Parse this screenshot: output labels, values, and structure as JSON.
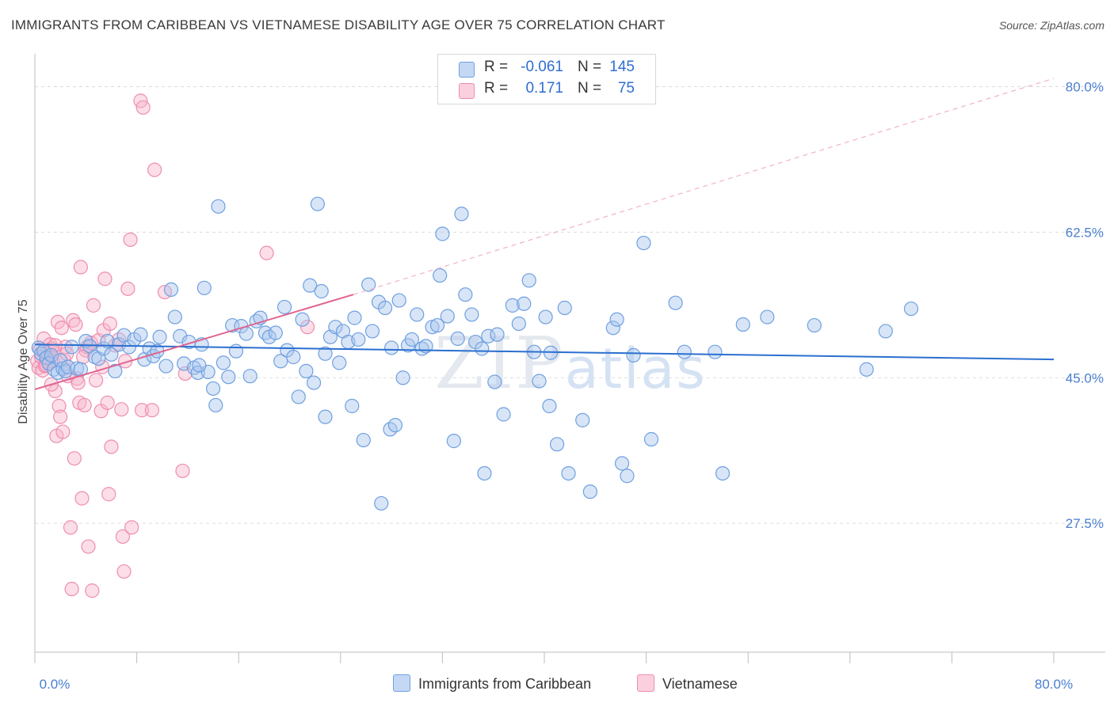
{
  "title": "IMMIGRANTS FROM CARIBBEAN VS VIETNAMESE DISABILITY AGE OVER 75 CORRELATION CHART",
  "source": "Source: ZipAtlas.com",
  "watermark": "ZIPatlas",
  "legend": {
    "rows": [
      {
        "r_label": "R =",
        "r_value": "-0.061",
        "n_label": "N =",
        "n_value": "145",
        "color": "#a9c6ee"
      },
      {
        "r_label": "R =",
        "r_value": "0.171",
        "n_label": "N =",
        "n_value": "75",
        "color": "#f6b6cb"
      }
    ]
  },
  "bottom_legend": {
    "series1": "Immigrants from Caribbean",
    "series2": "Vietnamese"
  },
  "chart_data": {
    "type": "scatter",
    "xlabel": "",
    "ylabel": "Disability Age Over 75",
    "xlim": [
      0,
      80
    ],
    "ylim": [
      12,
      83
    ],
    "x_tick_labels": [
      {
        "value": 0,
        "label": "0.0%"
      },
      {
        "value": 80,
        "label": "80.0%"
      }
    ],
    "y_tick_labels": [
      {
        "value": 27.5,
        "label": "27.5%"
      },
      {
        "value": 45.0,
        "label": "45.0%"
      },
      {
        "value": 62.5,
        "label": "62.5%"
      },
      {
        "value": 80.0,
        "label": "80.0%"
      }
    ],
    "series": [
      {
        "name": "Immigrants from Caribbean",
        "color": "#6fa0e0",
        "fill": "#a9c6ee",
        "trend": {
          "x0": 0,
          "y0": 49.0,
          "x1": 80,
          "y1": 47.2,
          "color": "#2b6fd0"
        },
        "points": [
          [
            0.3,
            48.6
          ],
          [
            0.5,
            47.9
          ],
          [
            0.7,
            48.2
          ],
          [
            0.9,
            47.4
          ],
          [
            1.1,
            46.7
          ],
          [
            1.3,
            47.7
          ],
          [
            1.5,
            46.0
          ],
          [
            1.8,
            45.6
          ],
          [
            2.0,
            47.1
          ],
          [
            2.2,
            46.1
          ],
          [
            2.4,
            45.8
          ],
          [
            2.6,
            46.3
          ],
          [
            2.9,
            48.7
          ],
          [
            3.3,
            46.1
          ],
          [
            3.6,
            46.0
          ],
          [
            4.0,
            49.4
          ],
          [
            4.3,
            48.8
          ],
          [
            4.7,
            47.5
          ],
          [
            5.0,
            47.3
          ],
          [
            5.4,
            48.5
          ],
          [
            5.7,
            49.4
          ],
          [
            6.0,
            47.8
          ],
          [
            6.3,
            45.8
          ],
          [
            6.6,
            49.0
          ],
          [
            7.0,
            50.1
          ],
          [
            7.4,
            48.7
          ],
          [
            7.8,
            49.6
          ],
          [
            8.3,
            50.2
          ],
          [
            8.6,
            47.2
          ],
          [
            9.0,
            48.5
          ],
          [
            9.3,
            47.6
          ],
          [
            9.8,
            49.9
          ],
          [
            10.3,
            46.4
          ],
          [
            10.7,
            55.6
          ],
          [
            11.0,
            52.3
          ],
          [
            11.4,
            50.0
          ],
          [
            11.7,
            46.7
          ],
          [
            12.1,
            49.3
          ],
          [
            12.5,
            46.2
          ],
          [
            12.8,
            45.6
          ],
          [
            13.1,
            49.0
          ],
          [
            13.3,
            55.8
          ],
          [
            13.6,
            45.7
          ],
          [
            14.0,
            43.7
          ],
          [
            14.2,
            41.7
          ],
          [
            14.4,
            65.6
          ],
          [
            14.8,
            46.8
          ],
          [
            15.2,
            45.1
          ],
          [
            15.5,
            51.3
          ],
          [
            15.8,
            48.2
          ],
          [
            16.2,
            51.2
          ],
          [
            16.6,
            50.3
          ],
          [
            16.9,
            45.2
          ],
          [
            17.4,
            51.8
          ],
          [
            17.7,
            52.2
          ],
          [
            18.1,
            50.4
          ],
          [
            18.4,
            49.9
          ],
          [
            18.9,
            50.4
          ],
          [
            19.3,
            47.0
          ],
          [
            19.6,
            53.5
          ],
          [
            19.8,
            48.3
          ],
          [
            20.3,
            47.5
          ],
          [
            20.7,
            42.7
          ],
          [
            21.0,
            52.0
          ],
          [
            21.3,
            45.8
          ],
          [
            21.6,
            56.1
          ],
          [
            21.9,
            44.4
          ],
          [
            22.2,
            65.9
          ],
          [
            22.5,
            55.4
          ],
          [
            22.8,
            47.9
          ],
          [
            23.2,
            49.9
          ],
          [
            23.6,
            51.1
          ],
          [
            23.9,
            46.8
          ],
          [
            24.2,
            50.6
          ],
          [
            24.6,
            49.3
          ],
          [
            24.9,
            41.6
          ],
          [
            25.1,
            52.2
          ],
          [
            25.4,
            49.6
          ],
          [
            25.8,
            37.5
          ],
          [
            26.2,
            56.2
          ],
          [
            26.5,
            50.6
          ],
          [
            27.0,
            54.1
          ],
          [
            27.2,
            29.9
          ],
          [
            27.5,
            53.4
          ],
          [
            27.9,
            38.8
          ],
          [
            28.3,
            39.3
          ],
          [
            28.6,
            54.3
          ],
          [
            28.9,
            45.0
          ],
          [
            29.3,
            48.9
          ],
          [
            29.6,
            49.6
          ],
          [
            30.0,
            52.6
          ],
          [
            30.4,
            48.5
          ],
          [
            30.7,
            48.8
          ],
          [
            31.2,
            51.1
          ],
          [
            31.6,
            51.3
          ],
          [
            31.8,
            57.3
          ],
          [
            32.0,
            62.3
          ],
          [
            32.4,
            52.4
          ],
          [
            32.9,
            37.4
          ],
          [
            33.2,
            49.7
          ],
          [
            33.5,
            64.7
          ],
          [
            33.8,
            55.0
          ],
          [
            34.3,
            52.6
          ],
          [
            34.6,
            49.3
          ],
          [
            35.1,
            48.5
          ],
          [
            35.3,
            33.5
          ],
          [
            35.6,
            50.0
          ],
          [
            36.3,
            50.2
          ],
          [
            36.8,
            40.6
          ],
          [
            37.5,
            53.7
          ],
          [
            38.0,
            51.5
          ],
          [
            38.4,
            53.9
          ],
          [
            38.8,
            56.7
          ],
          [
            39.2,
            48.1
          ],
          [
            39.6,
            44.6
          ],
          [
            40.1,
            52.3
          ],
          [
            40.4,
            41.6
          ],
          [
            41.0,
            37.0
          ],
          [
            41.6,
            53.4
          ],
          [
            41.9,
            33.5
          ],
          [
            43.0,
            39.9
          ],
          [
            43.6,
            31.3
          ],
          [
            45.4,
            51.0
          ],
          [
            45.7,
            52.0
          ],
          [
            46.1,
            34.7
          ],
          [
            46.5,
            33.2
          ],
          [
            47.0,
            47.7
          ],
          [
            47.8,
            61.2
          ],
          [
            48.4,
            37.6
          ],
          [
            50.3,
            54.0
          ],
          [
            51.0,
            48.1
          ],
          [
            53.4,
            48.1
          ],
          [
            54.0,
            33.5
          ],
          [
            55.6,
            51.4
          ],
          [
            57.5,
            52.3
          ],
          [
            61.2,
            51.3
          ],
          [
            65.3,
            46.0
          ],
          [
            66.8,
            50.6
          ],
          [
            68.8,
            53.3
          ],
          [
            40.5,
            48.0
          ],
          [
            22.8,
            40.3
          ],
          [
            36.1,
            44.5
          ],
          [
            28.0,
            48.6
          ],
          [
            12.9,
            46.5
          ],
          [
            9.6,
            48.2
          ]
        ]
      },
      {
        "name": "Vietnamese",
        "color": "#ef8db0",
        "fill": "#f6b6cb",
        "trend": {
          "x0": 0,
          "y0": 43.6,
          "x1": 25,
          "y1": 55.0,
          "color": "#e0638f"
        },
        "trend_ext": {
          "x0": 25,
          "y0": 55.0,
          "x1": 80,
          "y1": 81.0
        },
        "points": [
          [
            0.2,
            47.0
          ],
          [
            0.3,
            46.2
          ],
          [
            0.4,
            48.4
          ],
          [
            0.5,
            47.5
          ],
          [
            0.6,
            45.9
          ],
          [
            0.7,
            49.7
          ],
          [
            0.8,
            46.4
          ],
          [
            0.9,
            48.0
          ],
          [
            1.0,
            47.3
          ],
          [
            1.1,
            46.8
          ],
          [
            1.2,
            49.0
          ],
          [
            1.3,
            48.5
          ],
          [
            1.4,
            47.0
          ],
          [
            1.5,
            48.2
          ],
          [
            1.6,
            43.4
          ],
          [
            1.7,
            38.0
          ],
          [
            1.8,
            51.7
          ],
          [
            1.9,
            41.6
          ],
          [
            2.0,
            40.3
          ],
          [
            2.1,
            51.0
          ],
          [
            2.2,
            38.5
          ],
          [
            2.3,
            47.1
          ],
          [
            2.4,
            48.7
          ],
          [
            2.6,
            45.2
          ],
          [
            2.8,
            27.0
          ],
          [
            2.9,
            19.6
          ],
          [
            3.0,
            51.9
          ],
          [
            3.1,
            35.3
          ],
          [
            3.2,
            51.4
          ],
          [
            3.3,
            44.9
          ],
          [
            3.4,
            44.4
          ],
          [
            3.5,
            42.0
          ],
          [
            3.6,
            58.3
          ],
          [
            3.7,
            30.5
          ],
          [
            3.9,
            41.7
          ],
          [
            4.0,
            48.3
          ],
          [
            4.1,
            48.7
          ],
          [
            4.2,
            24.7
          ],
          [
            4.4,
            49.2
          ],
          [
            4.5,
            19.4
          ],
          [
            4.6,
            53.7
          ],
          [
            4.8,
            44.7
          ],
          [
            5.0,
            49.5
          ],
          [
            5.2,
            41.0
          ],
          [
            5.4,
            50.7
          ],
          [
            5.5,
            56.9
          ],
          [
            5.7,
            42.0
          ],
          [
            5.8,
            31.0
          ],
          [
            5.9,
            51.5
          ],
          [
            6.0,
            36.7
          ],
          [
            6.3,
            48.9
          ],
          [
            6.6,
            49.6
          ],
          [
            6.8,
            41.2
          ],
          [
            6.9,
            25.9
          ],
          [
            7.0,
            21.7
          ],
          [
            7.1,
            47.0
          ],
          [
            7.3,
            55.7
          ],
          [
            7.5,
            61.6
          ],
          [
            7.6,
            27.0
          ],
          [
            8.3,
            78.3
          ],
          [
            8.5,
            77.5
          ],
          [
            8.4,
            41.1
          ],
          [
            9.4,
            70.0
          ],
          [
            9.2,
            41.1
          ],
          [
            10.2,
            55.3
          ],
          [
            11.6,
            33.8
          ],
          [
            11.8,
            45.5
          ],
          [
            18.2,
            60.0
          ],
          [
            21.4,
            51.1
          ],
          [
            1.3,
            44.2
          ],
          [
            0.9,
            46.5
          ],
          [
            2.5,
            47.9
          ],
          [
            1.6,
            48.9
          ],
          [
            5.3,
            46.3
          ],
          [
            3.8,
            47.5
          ]
        ]
      }
    ]
  }
}
